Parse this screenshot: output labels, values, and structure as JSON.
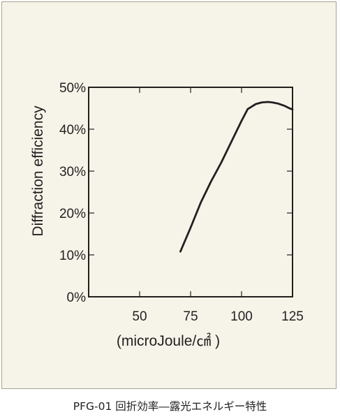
{
  "caption": "PFG-01 回折効率―露光エネルギー特性",
  "chart_data": {
    "type": "line",
    "xlabel": "(microJoule/㎠ )",
    "ylabel": "Diffraction efficiency",
    "xlim": [
      25,
      125
    ],
    "ylim": [
      0,
      50
    ],
    "x_ticks": [
      {
        "value": 50,
        "label": "50"
      },
      {
        "value": 75,
        "label": "75"
      },
      {
        "value": 100,
        "label": "100"
      },
      {
        "value": 125,
        "label": "125"
      }
    ],
    "y_ticks": [
      {
        "value": 0,
        "label": "0%"
      },
      {
        "value": 10,
        "label": "10%"
      },
      {
        "value": 20,
        "label": "20%"
      },
      {
        "value": 30,
        "label": "30%"
      },
      {
        "value": 40,
        "label": "40%"
      },
      {
        "value": 50,
        "label": "50%"
      }
    ],
    "grid": false,
    "series": [
      {
        "color": "#231f20",
        "x": [
          70,
          75,
          80,
          85,
          90,
          95,
          100,
          103,
          107,
          110,
          113,
          115,
          118,
          121,
          123,
          125
        ],
        "y": [
          10.8,
          16.5,
          22.5,
          27.5,
          32,
          37,
          42,
          44.8,
          46,
          46.4,
          46.5,
          46.4,
          46.1,
          45.6,
          45.1,
          44.7
        ]
      }
    ]
  }
}
